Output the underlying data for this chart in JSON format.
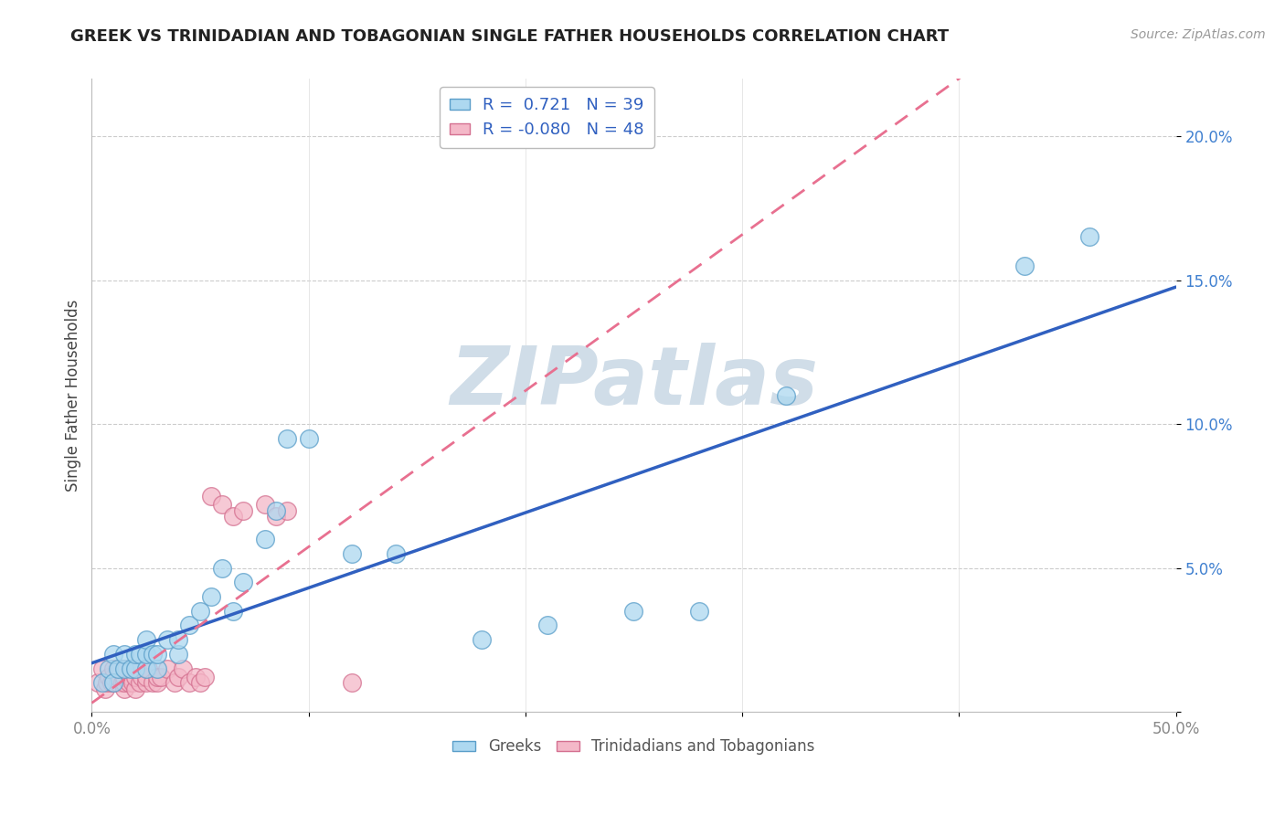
{
  "title": "GREEK VS TRINIDADIAN AND TOBAGONIAN SINGLE FATHER HOUSEHOLDS CORRELATION CHART",
  "source": "Source: ZipAtlas.com",
  "ylabel": "Single Father Households",
  "xlim": [
    0.0,
    0.5
  ],
  "ylim": [
    0.0,
    0.22
  ],
  "xticks": [
    0.0,
    0.1,
    0.2,
    0.3,
    0.4,
    0.5
  ],
  "xticklabels": [
    "0.0%",
    "",
    "",
    "",
    "",
    "50.0%"
  ],
  "yticks": [
    0.0,
    0.05,
    0.1,
    0.15,
    0.2
  ],
  "yticklabels": [
    "",
    "5.0%",
    "10.0%",
    "15.0%",
    "20.0%"
  ],
  "greek_R": 0.721,
  "greek_N": 39,
  "tnt_R": -0.08,
  "tnt_N": 48,
  "greek_color": "#ADD8F0",
  "greek_edge_color": "#5A9EC9",
  "tnt_color": "#F4B8C8",
  "tnt_edge_color": "#D47090",
  "trend_greek_color": "#3060C0",
  "trend_tnt_color": "#E87090",
  "watermark_text": "ZIPatlas",
  "watermark_color": "#D0DDE8",
  "legend_text_color": "#3060C0",
  "grid_color": "#CCCCCC",
  "title_color": "#222222",
  "source_color": "#999999",
  "ylabel_color": "#444444",
  "ytick_color": "#4080D0",
  "xtick_color": "#888888",
  "greek_x": [
    0.005,
    0.008,
    0.01,
    0.01,
    0.012,
    0.015,
    0.015,
    0.018,
    0.02,
    0.02,
    0.022,
    0.025,
    0.025,
    0.025,
    0.028,
    0.03,
    0.03,
    0.035,
    0.04,
    0.04,
    0.045,
    0.05,
    0.055,
    0.06,
    0.065,
    0.07,
    0.08,
    0.085,
    0.09,
    0.1,
    0.12,
    0.14,
    0.18,
    0.21,
    0.25,
    0.28,
    0.32,
    0.43,
    0.46
  ],
  "greek_y": [
    0.01,
    0.015,
    0.01,
    0.02,
    0.015,
    0.015,
    0.02,
    0.015,
    0.015,
    0.02,
    0.02,
    0.015,
    0.02,
    0.025,
    0.02,
    0.015,
    0.02,
    0.025,
    0.02,
    0.025,
    0.03,
    0.035,
    0.04,
    0.05,
    0.035,
    0.045,
    0.06,
    0.07,
    0.095,
    0.095,
    0.055,
    0.055,
    0.025,
    0.03,
    0.035,
    0.035,
    0.11,
    0.155,
    0.165
  ],
  "tnt_x": [
    0.003,
    0.005,
    0.006,
    0.007,
    0.008,
    0.009,
    0.01,
    0.01,
    0.01,
    0.012,
    0.012,
    0.013,
    0.014,
    0.015,
    0.015,
    0.015,
    0.016,
    0.017,
    0.018,
    0.019,
    0.02,
    0.02,
    0.021,
    0.022,
    0.023,
    0.025,
    0.025,
    0.026,
    0.028,
    0.03,
    0.03,
    0.032,
    0.035,
    0.038,
    0.04,
    0.042,
    0.045,
    0.048,
    0.05,
    0.052,
    0.055,
    0.06,
    0.065,
    0.07,
    0.08,
    0.085,
    0.09,
    0.12
  ],
  "tnt_y": [
    0.01,
    0.015,
    0.008,
    0.01,
    0.012,
    0.01,
    0.01,
    0.012,
    0.015,
    0.01,
    0.012,
    0.015,
    0.01,
    0.008,
    0.01,
    0.012,
    0.015,
    0.01,
    0.012,
    0.01,
    0.008,
    0.012,
    0.015,
    0.01,
    0.012,
    0.01,
    0.012,
    0.015,
    0.01,
    0.01,
    0.012,
    0.012,
    0.015,
    0.01,
    0.012,
    0.015,
    0.01,
    0.012,
    0.01,
    0.012,
    0.075,
    0.072,
    0.068,
    0.07,
    0.072,
    0.068,
    0.07,
    0.01
  ],
  "trend_greek_x0": 0.0,
  "trend_greek_x1": 0.5,
  "trend_tnt_x0": 0.0,
  "trend_tnt_x1": 0.5
}
